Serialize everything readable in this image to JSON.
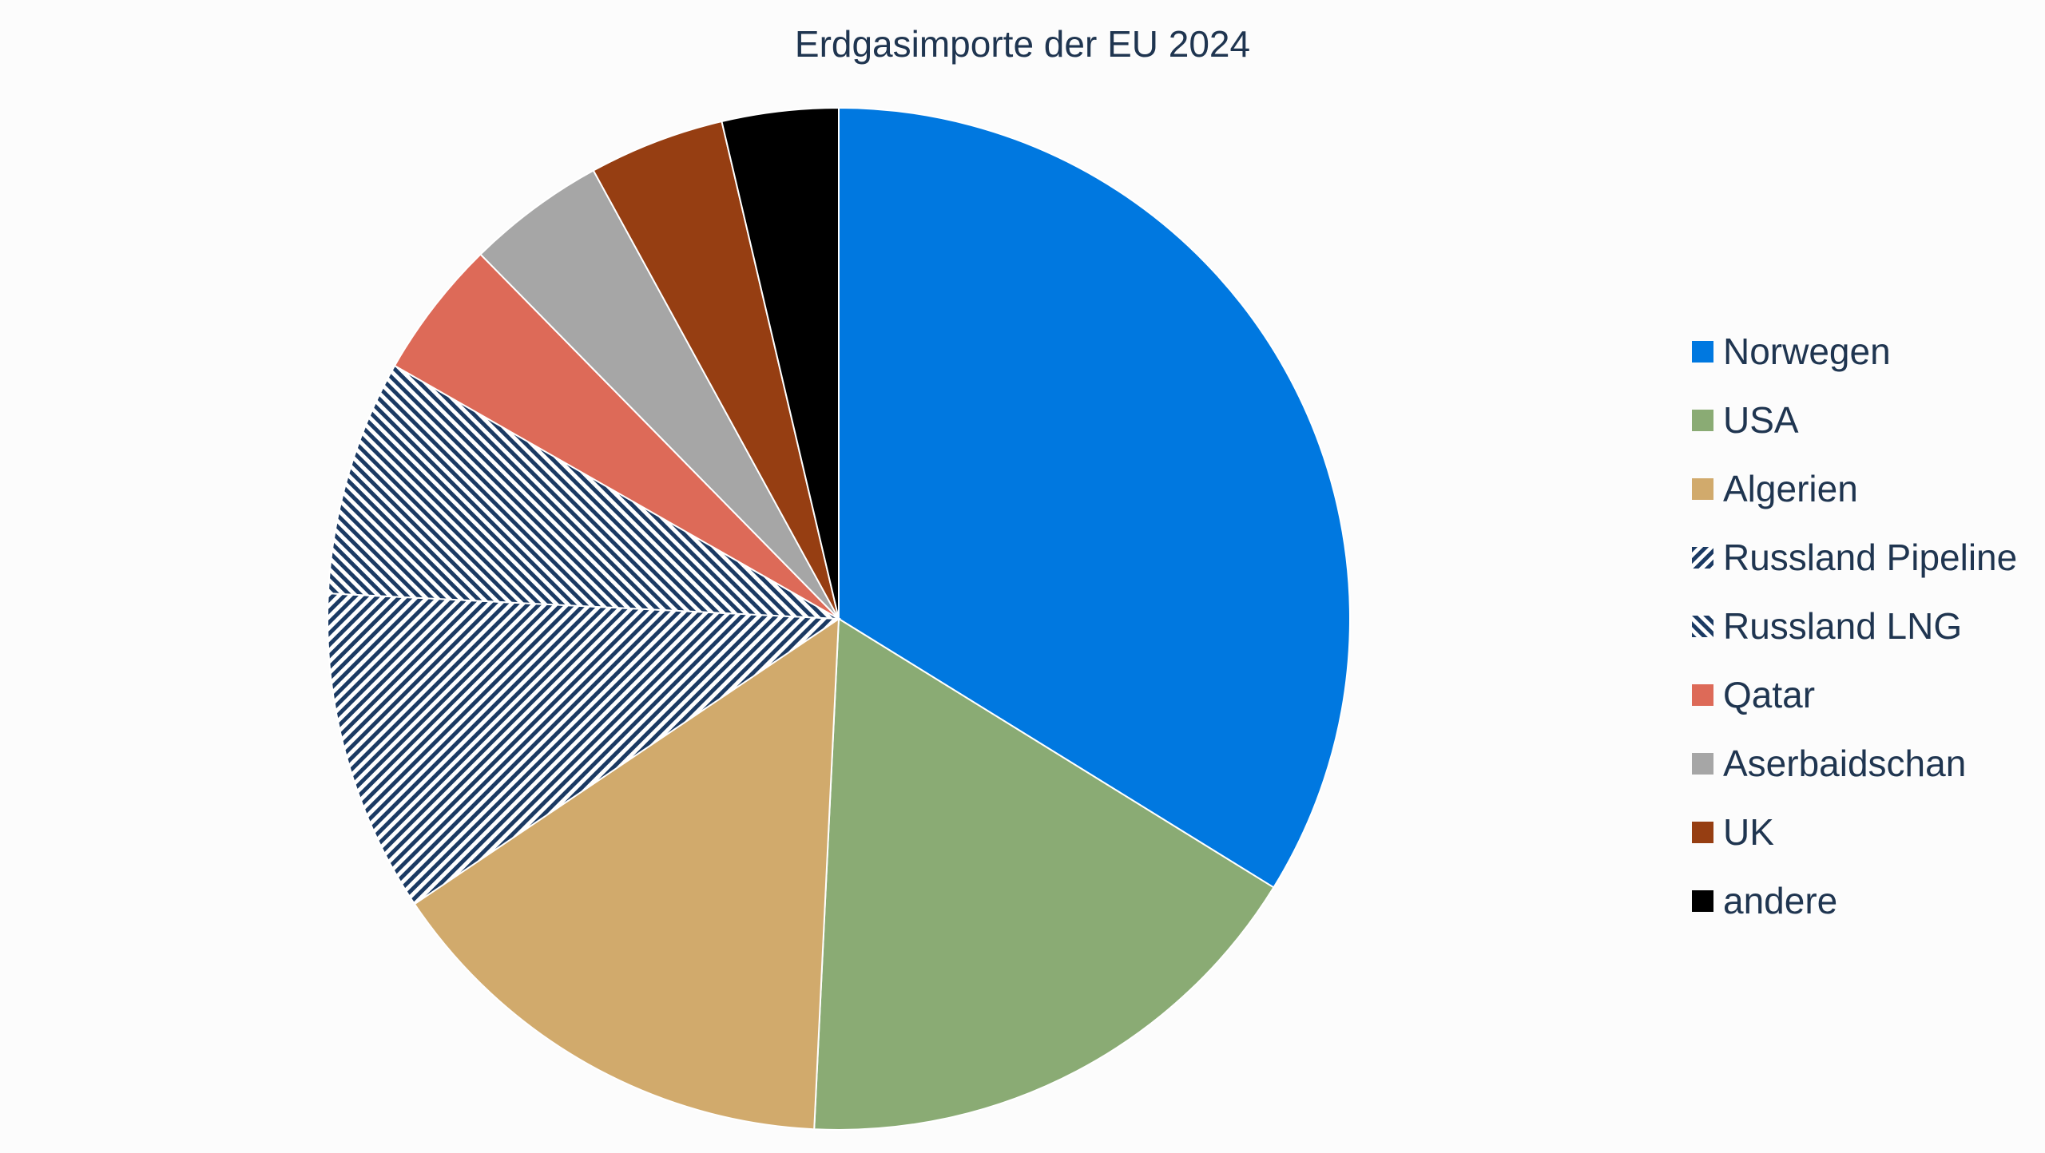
{
  "chart_data": {
    "type": "pie",
    "title": "Erdgasimporte der EU 2024",
    "start_angle_deg": 0,
    "direction": "clockwise",
    "legend_position": "right",
    "slices": [
      {
        "label": "Norwegen",
        "value": 33.1,
        "color": "#0078e0",
        "pattern": "solid"
      },
      {
        "label": "USA",
        "value": 16.6,
        "color": "#8aab74",
        "pattern": "solid"
      },
      {
        "label": "Algerien",
        "value": 14.5,
        "color": "#d1aa6c",
        "pattern": "solid"
      },
      {
        "label": "Russland Pipeline",
        "value": 10.0,
        "color": "#1b3a63",
        "pattern": "diagonal-down"
      },
      {
        "label": "Russland LNG",
        "value": 7.3,
        "color": "#1b3a63",
        "pattern": "diagonal-up"
      },
      {
        "label": "Qatar",
        "value": 4.3,
        "color": "#dd6a58",
        "pattern": "solid"
      },
      {
        "label": "Aserbaidschan",
        "value": 4.3,
        "color": "#a6a6a6",
        "pattern": "solid"
      },
      {
        "label": "UK",
        "value": 4.2,
        "color": "#963e12",
        "pattern": "solid"
      },
      {
        "label": "andere",
        "value": 3.6,
        "color": "#000000",
        "pattern": "solid"
      }
    ]
  }
}
